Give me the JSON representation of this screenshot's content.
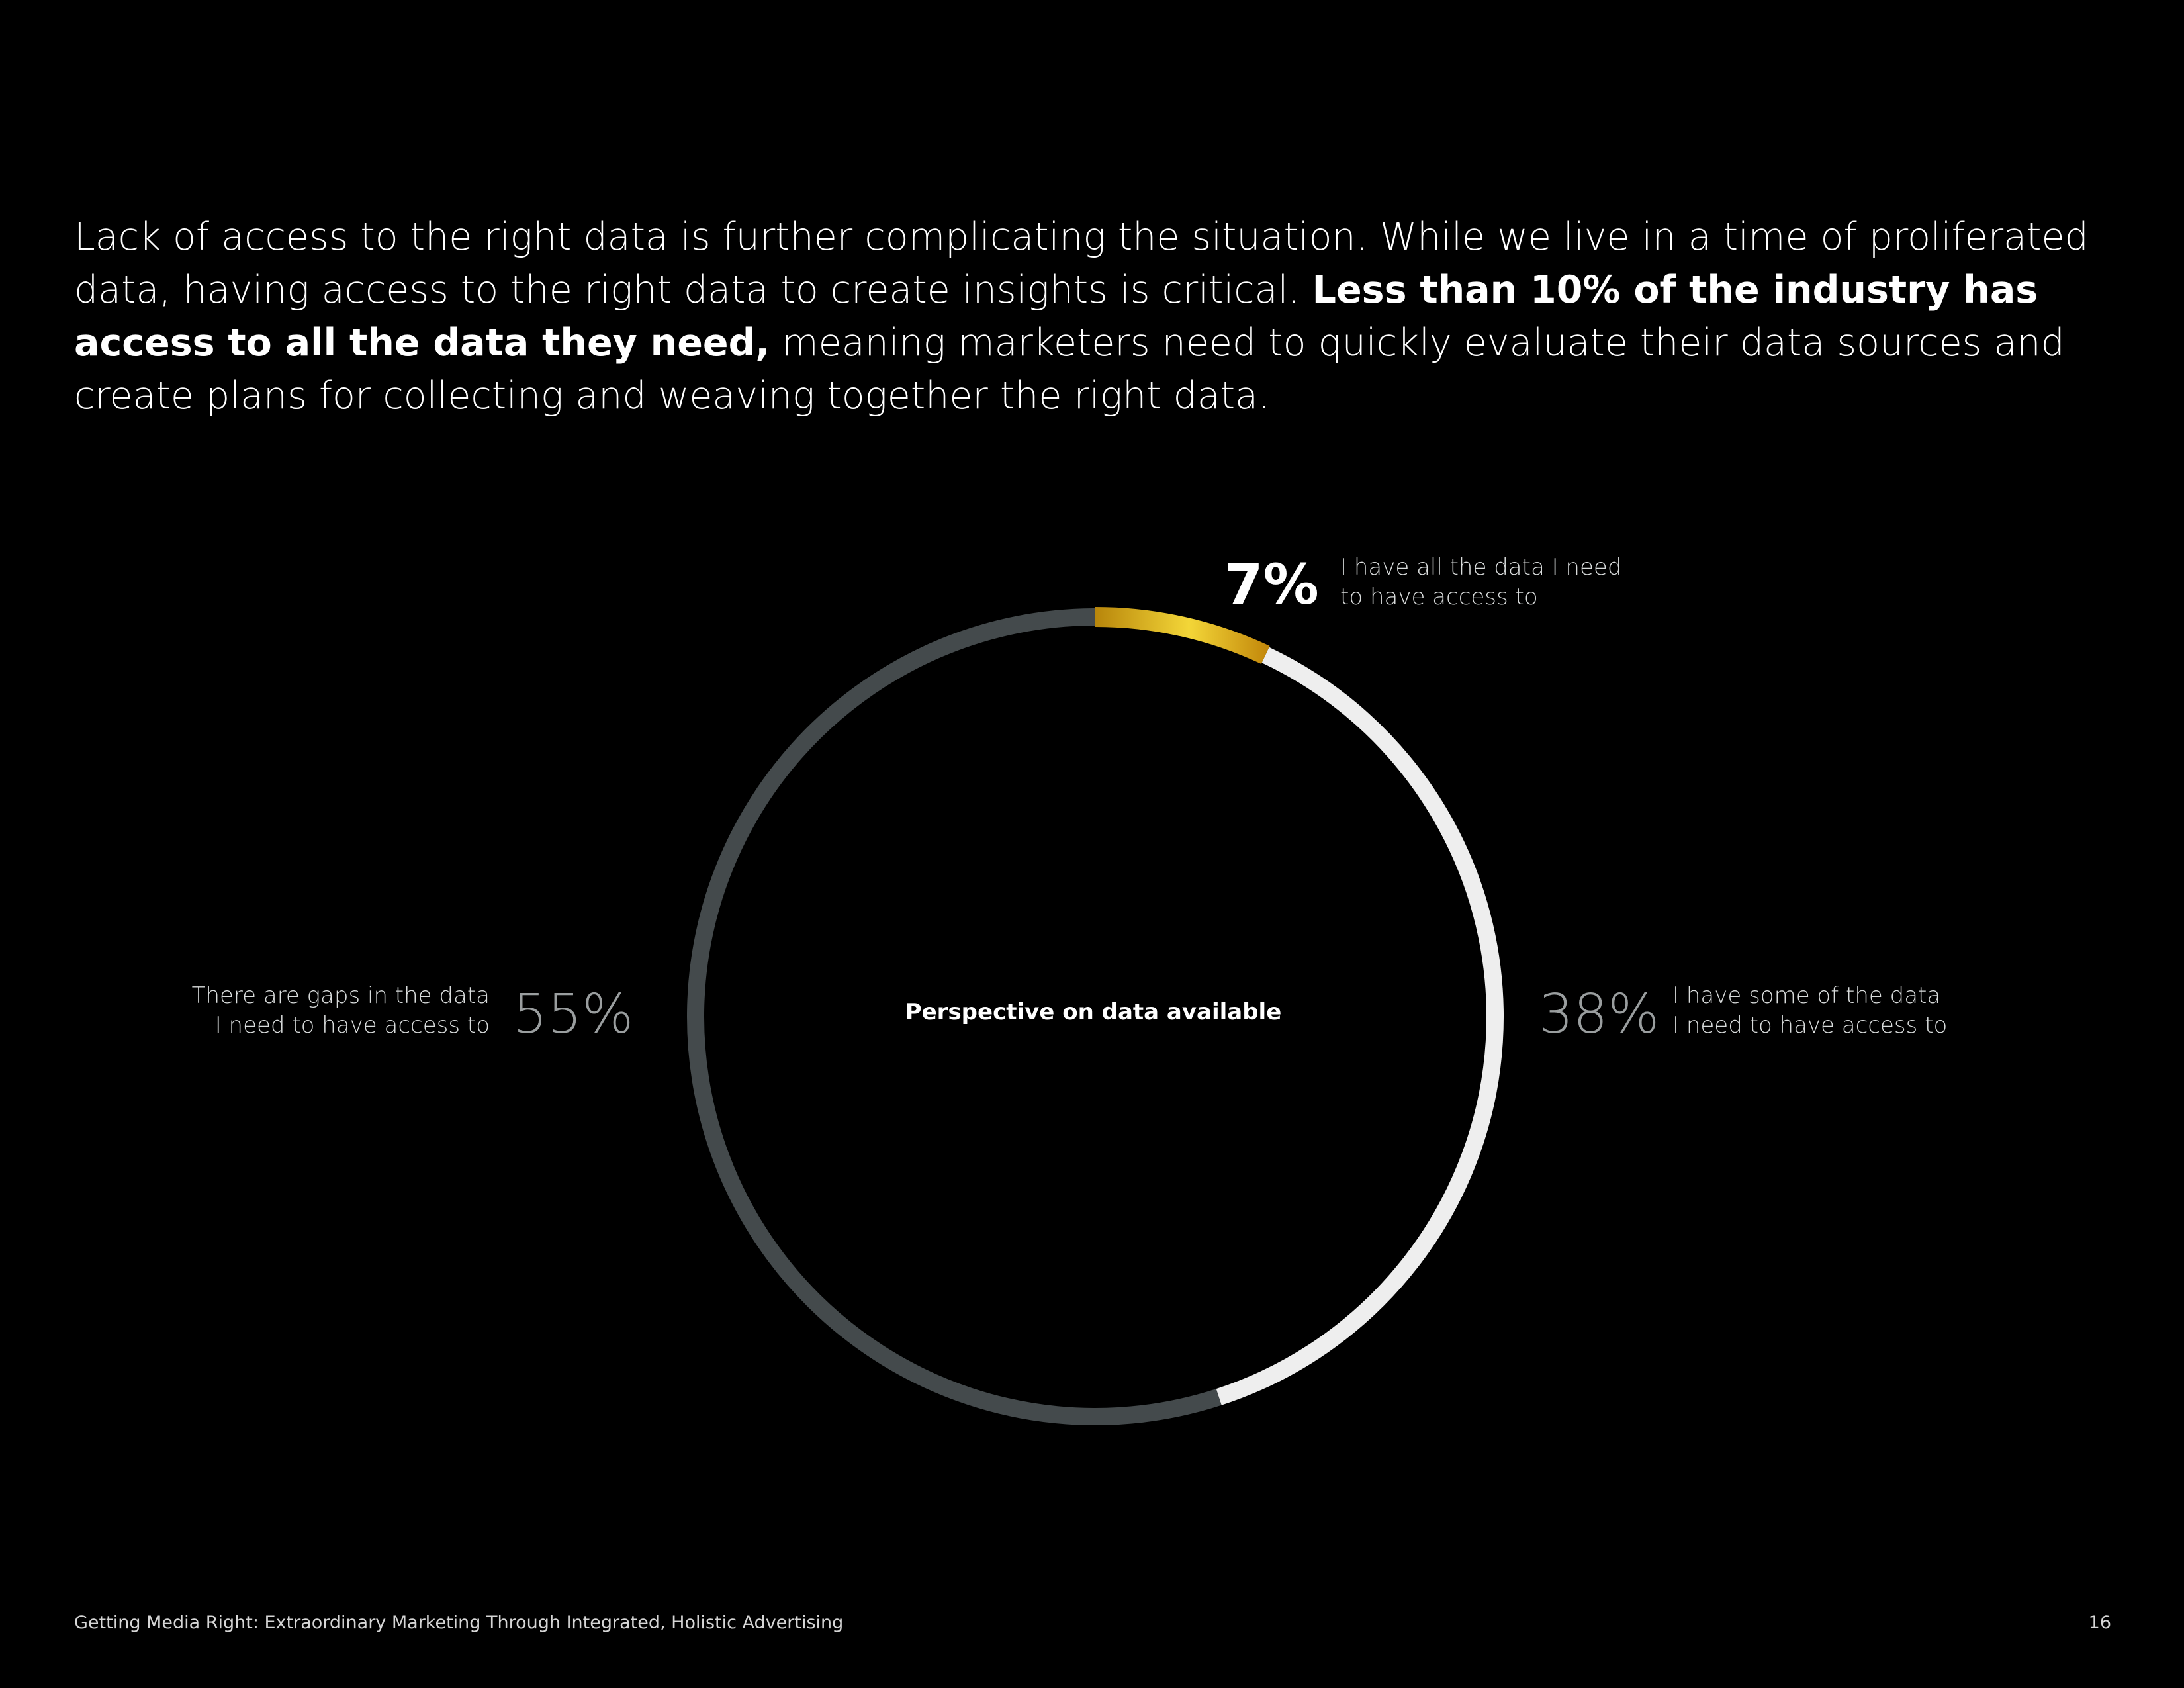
{
  "intro": {
    "part1": "Lack of access to the right data is further complicating the situation. While we live in a time of proliferated data, having access to the right data to create insights is critical. ",
    "bold": "Less than 10% of the industry has access to all the data they need,",
    "part2": " meaning marketers need to quickly evaluate their data sources and create plans for collecting and weaving together the right data."
  },
  "chart_data": {
    "type": "pie",
    "title": "Perspective on data available",
    "categories": [
      "I have all the data I need to have access to",
      "I have some of the data I need to have access to",
      "There are gaps in the data I need to have access to"
    ],
    "values": [
      7,
      38,
      55
    ],
    "value_labels": [
      "7%",
      "38%",
      "55%"
    ],
    "label_lines": [
      [
        "I have all the data I need",
        "to have access to"
      ],
      [
        "I have some of the data",
        "I need to have access to"
      ],
      [
        "There are gaps in the data",
        "I need to have access to"
      ]
    ],
    "colors": [
      "#e8c22a",
      "#eeeeee",
      "#444a4c"
    ],
    "legend": "none"
  },
  "footer": {
    "title": "Getting Media Right: Extraordinary Marketing Through Integrated, Holistic Advertising",
    "page_number": "16"
  }
}
